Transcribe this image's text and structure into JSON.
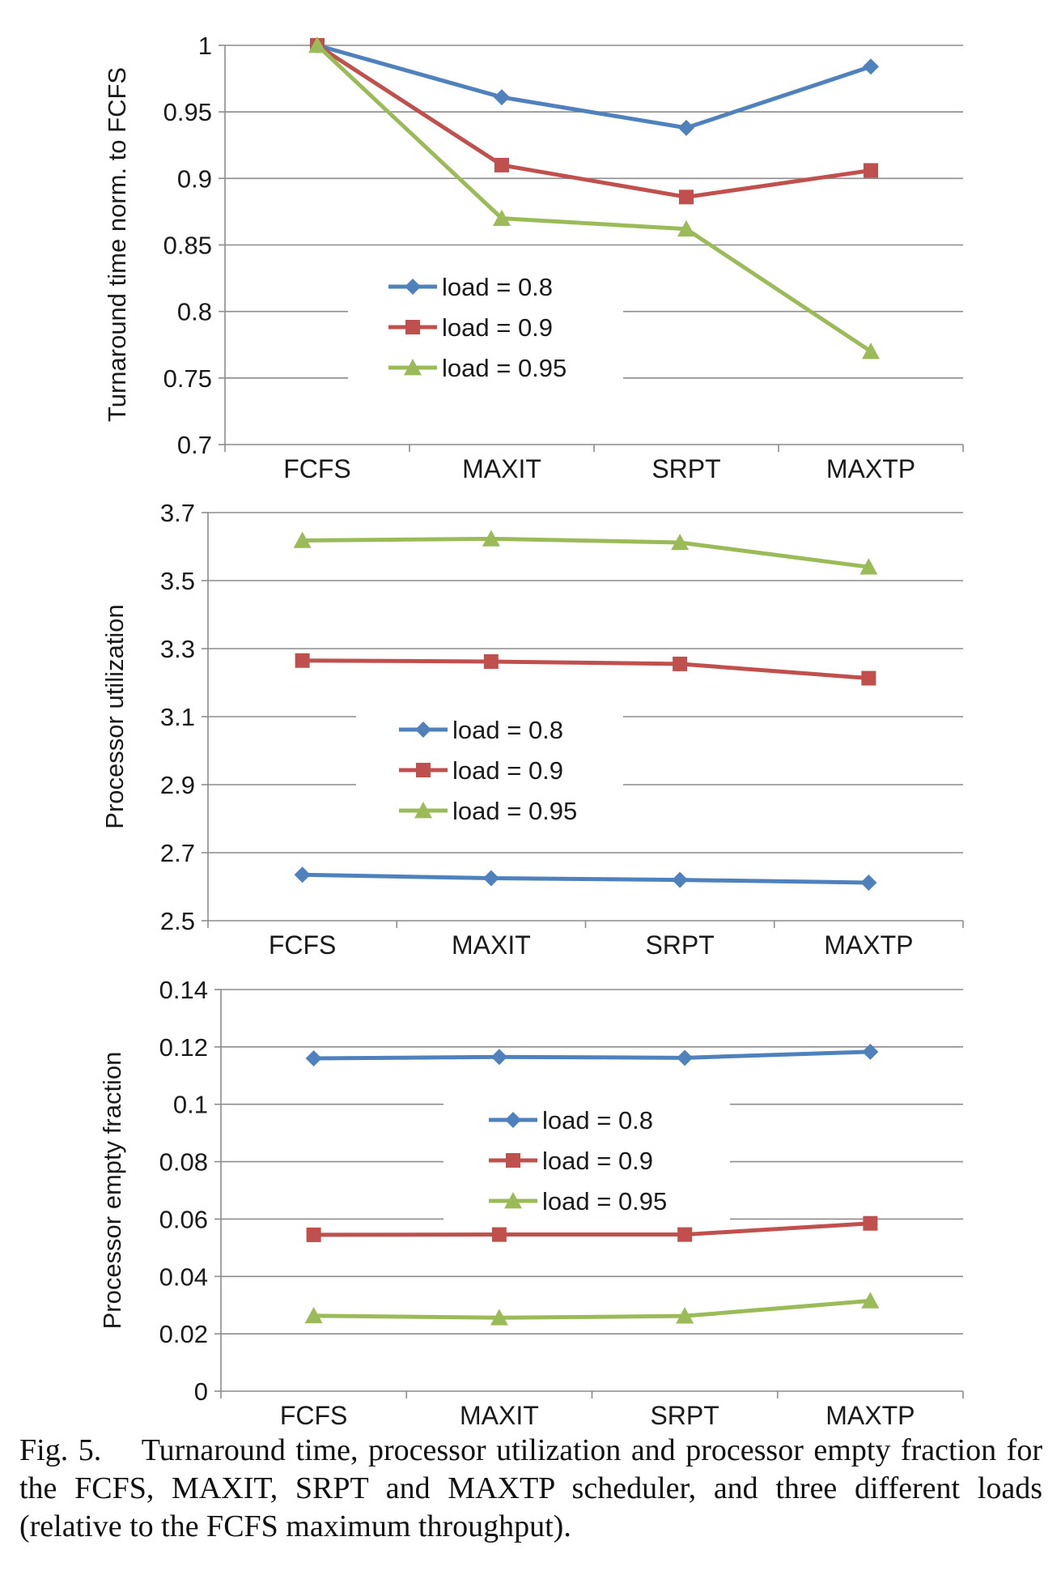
{
  "chart_data": [
    {
      "type": "line",
      "categories": [
        "FCFS",
        "MAXIT",
        "SRPT",
        "MAXTP"
      ],
      "ylabel": "Turnaround time norm. to FCFS",
      "xlabel": "",
      "ylim": [
        0.7,
        1
      ],
      "yticks": [
        "0.7",
        "0.75",
        "0.8",
        "0.85",
        "0.9",
        "0.95",
        "1"
      ],
      "grid": true,
      "legend_position": "center-left",
      "series": [
        {
          "name": "load = 0.8",
          "color": "#4F81BD",
          "marker": "diamond",
          "values": [
            1.0,
            0.961,
            0.938,
            0.984
          ]
        },
        {
          "name": "load = 0.9",
          "color": "#C0504D",
          "marker": "square",
          "values": [
            1.0,
            0.91,
            0.886,
            0.906
          ]
        },
        {
          "name": "load = 0.95",
          "color": "#9BBB59",
          "marker": "triangle",
          "values": [
            1.0,
            0.87,
            0.862,
            0.77
          ]
        }
      ]
    },
    {
      "type": "line",
      "categories": [
        "FCFS",
        "MAXIT",
        "SRPT",
        "MAXTP"
      ],
      "ylabel": "Processor utilization",
      "xlabel": "",
      "ylim": [
        2.5,
        3.7
      ],
      "yticks": [
        "2.5",
        "2.7",
        "2.9",
        "3.1",
        "3.3",
        "3.5",
        "3.7"
      ],
      "grid": true,
      "legend_position": "center-left",
      "series": [
        {
          "name": "load = 0.8",
          "color": "#4F81BD",
          "marker": "diamond",
          "values": [
            2.635,
            2.625,
            2.62,
            2.612
          ]
        },
        {
          "name": "load = 0.9",
          "color": "#C0504D",
          "marker": "square",
          "values": [
            3.265,
            3.262,
            3.255,
            3.213
          ]
        },
        {
          "name": "load = 0.95",
          "color": "#9BBB59",
          "marker": "triangle",
          "values": [
            3.618,
            3.623,
            3.612,
            3.54
          ]
        }
      ]
    },
    {
      "type": "line",
      "categories": [
        "FCFS",
        "MAXIT",
        "SRPT",
        "MAXTP"
      ],
      "ylabel": "Processor empty fraction",
      "xlabel": "",
      "ylim": [
        0,
        0.14
      ],
      "yticks": [
        "0",
        "0.02",
        "0.04",
        "0.06",
        "0.08",
        "0.1",
        "0.12",
        "0.14"
      ],
      "grid": true,
      "legend_position": "center",
      "series": [
        {
          "name": "load = 0.8",
          "color": "#4F81BD",
          "marker": "diamond",
          "values": [
            0.116,
            0.1165,
            0.1162,
            0.1183
          ]
        },
        {
          "name": "load = 0.9",
          "color": "#C0504D",
          "marker": "square",
          "values": [
            0.0545,
            0.0546,
            0.0546,
            0.0585
          ]
        },
        {
          "name": "load = 0.95",
          "color": "#9BBB59",
          "marker": "triangle",
          "values": [
            0.0263,
            0.0256,
            0.0262,
            0.0315
          ]
        }
      ]
    }
  ],
  "caption": {
    "label": "Fig. 5.",
    "text": "Turnaround time, processor utilization and processor empty fraction for the FCFS, MAXIT, SRPT and MAXTP scheduler, and three different loads (relative to the FCFS maximum throughput)."
  }
}
